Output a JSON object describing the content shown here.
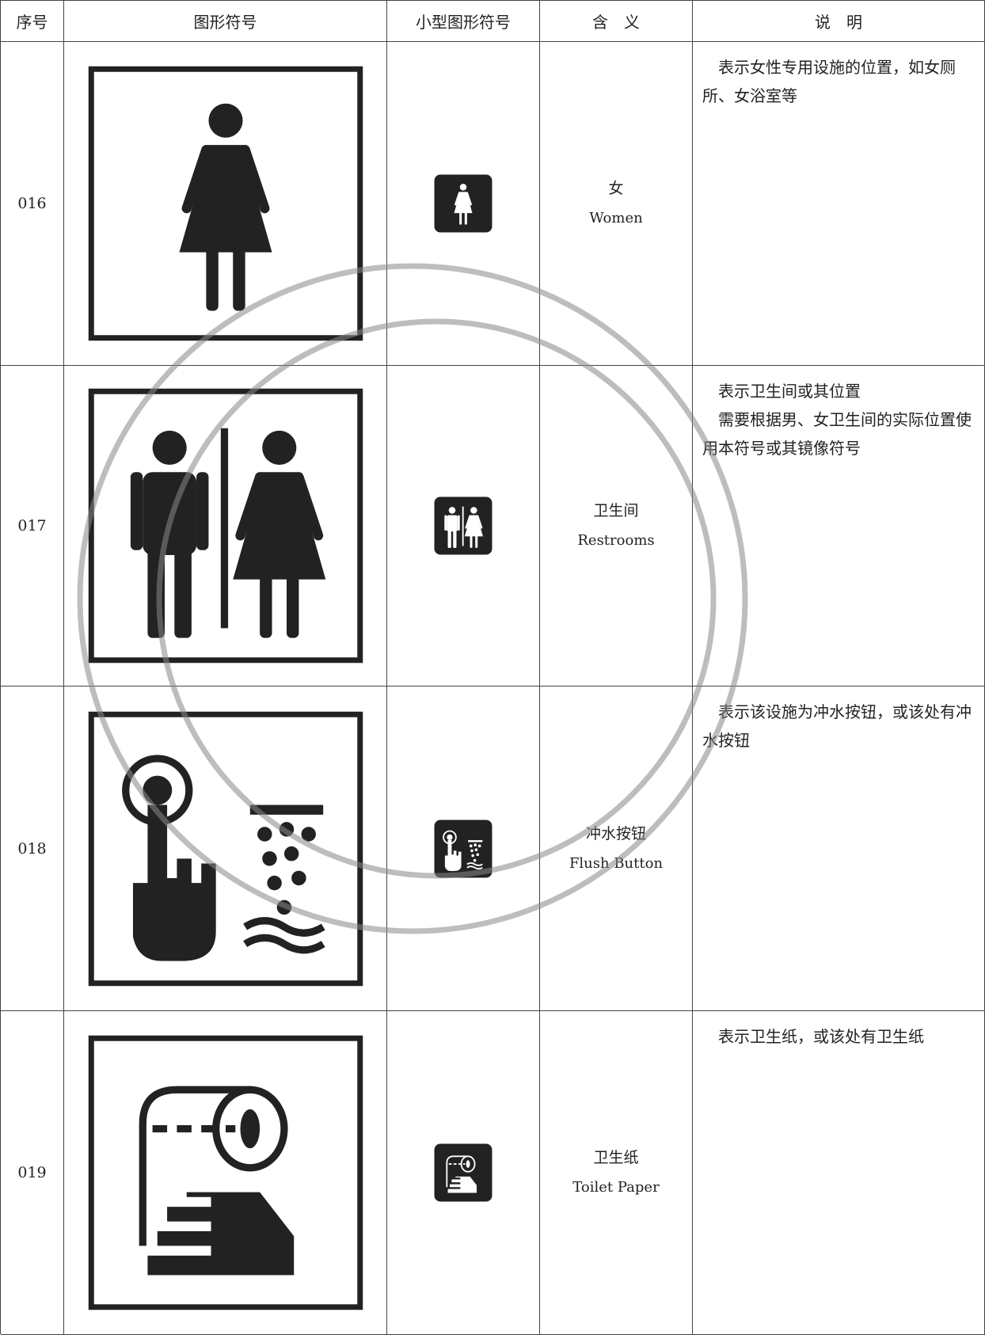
{
  "header": [
    "序号",
    "图形符号",
    "小型图形符号",
    "含　义",
    "说　明"
  ],
  "rows": [
    {
      "number": "016",
      "meaning_zh": "女",
      "meaning_en": "Women",
      "description": [
        "表示女性专用设施的位置，如女厕所、女浴室等"
      ]
    },
    {
      "number": "017",
      "meaning_zh": "卫生间",
      "meaning_en": "Restrooms",
      "description": [
        "表示卫生间或其位置",
        "需要根据男、女卫生间的实际位置使用本符号或其镜像符号"
      ]
    },
    {
      "number": "018",
      "meaning_zh": "冲水按钮",
      "meaning_en": "Flush Button",
      "description": [
        "表示该设施为冲水按钮，或该处有冲水按钮"
      ]
    },
    {
      "number": "019",
      "meaning_zh": "卫生纸",
      "meaning_en": "Toilet Paper",
      "description": [
        "表示卫生纸，或该处有卫生纸"
      ]
    }
  ]
}
